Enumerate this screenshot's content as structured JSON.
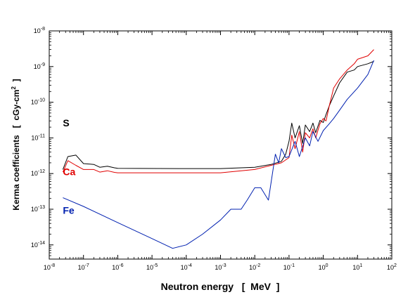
{
  "chart_data": {
    "type": "line",
    "xlabel": "Neutron energy   [  MeV  ]",
    "ylabel": "Kerma coefficients   [  cGy-cm",
    "ylabel_sup": "2",
    "ylabel_end": "  ]",
    "x_scale": "log",
    "y_scale": "log",
    "xlim": [
      1e-08,
      100
    ],
    "ylim": [
      4e-15,
      1e-08
    ],
    "grid": false,
    "x_ticks": [
      {
        "value": 1e-08,
        "base": "10",
        "exp": "-8"
      },
      {
        "value": 1e-07,
        "base": "10",
        "exp": "-7"
      },
      {
        "value": 1e-06,
        "base": "10",
        "exp": "-6"
      },
      {
        "value": 1e-05,
        "base": "10",
        "exp": "-5"
      },
      {
        "value": 0.0001,
        "base": "10",
        "exp": "-4"
      },
      {
        "value": 0.001,
        "base": "10",
        "exp": "-3"
      },
      {
        "value": 0.01,
        "base": "10",
        "exp": "-2"
      },
      {
        "value": 0.1,
        "base": "10",
        "exp": "-1"
      },
      {
        "value": 1,
        "base": "10",
        "exp": "0"
      },
      {
        "value": 10,
        "base": "10",
        "exp": "1"
      },
      {
        "value": 100,
        "base": "10",
        "exp": "2"
      }
    ],
    "y_ticks": [
      {
        "value": 1e-14,
        "base": "10",
        "exp": "-14"
      },
      {
        "value": 1e-13,
        "base": "10",
        "exp": "-13"
      },
      {
        "value": 1e-12,
        "base": "10",
        "exp": "-12"
      },
      {
        "value": 1e-11,
        "base": "10",
        "exp": "-11"
      },
      {
        "value": 1e-10,
        "base": "10",
        "exp": "-10"
      },
      {
        "value": 1e-09,
        "base": "10",
        "exp": "-9"
      },
      {
        "value": 1e-08,
        "base": "10",
        "exp": "-8"
      }
    ],
    "series": [
      {
        "name": "S",
        "color": "#000000",
        "label_at": [
          2.5e-08,
          2.1e-11
        ],
        "points": [
          [
            2.5e-08,
            1.3e-12
          ],
          [
            3.5e-08,
            3e-12
          ],
          [
            6e-08,
            3.3e-12
          ],
          [
            1e-07,
            1.9e-12
          ],
          [
            2e-07,
            1.8e-12
          ],
          [
            3e-07,
            1.5e-12
          ],
          [
            5e-07,
            1.6e-12
          ],
          [
            8e-07,
            1.45e-12
          ],
          [
            1e-06,
            1.4e-12
          ],
          [
            0.0001,
            1.38e-12
          ],
          [
            0.001,
            1.38e-12
          ],
          [
            0.01,
            1.5e-12
          ],
          [
            0.03,
            1.8e-12
          ],
          [
            0.06,
            2.2e-12
          ],
          [
            0.08,
            3.5e-12
          ],
          [
            0.1,
            8e-12
          ],
          [
            0.12,
            2.6e-11
          ],
          [
            0.15,
            1e-11
          ],
          [
            0.2,
            2.2e-11
          ],
          [
            0.25,
            7e-12
          ],
          [
            0.3,
            2.3e-11
          ],
          [
            0.4,
            1.5e-11
          ],
          [
            0.5,
            2.6e-11
          ],
          [
            0.6,
            1.4e-11
          ],
          [
            0.8,
            3.1e-11
          ],
          [
            1.0,
            2.7e-11
          ],
          [
            1.2,
            4.5e-11
          ],
          [
            1.5,
            8e-11
          ],
          [
            2,
            1.5e-10
          ],
          [
            3,
            3.5e-10
          ],
          [
            5,
            7e-10
          ],
          [
            8,
            8e-10
          ],
          [
            10,
            1e-09
          ],
          [
            20,
            1.2e-09
          ],
          [
            30,
            1.4e-09
          ]
        ]
      },
      {
        "name": "Ca",
        "color": "#e00000",
        "label_at": [
          2.5e-08,
          9e-13
        ],
        "points": [
          [
            2.5e-08,
            1.1e-12
          ],
          [
            3.5e-08,
            2.3e-12
          ],
          [
            6e-08,
            1.7e-12
          ],
          [
            1e-07,
            1.3e-12
          ],
          [
            2e-07,
            1.3e-12
          ],
          [
            3e-07,
            1.1e-12
          ],
          [
            5e-07,
            1.2e-12
          ],
          [
            8e-07,
            1.08e-12
          ],
          [
            1e-06,
            1.05e-12
          ],
          [
            0.0001,
            1.05e-12
          ],
          [
            0.001,
            1.05e-12
          ],
          [
            0.01,
            1.3e-12
          ],
          [
            0.03,
            1.7e-12
          ],
          [
            0.06,
            2e-12
          ],
          [
            0.1,
            2.8e-12
          ],
          [
            0.12,
            1.2e-11
          ],
          [
            0.15,
            5e-12
          ],
          [
            0.2,
            1.5e-11
          ],
          [
            0.25,
            4e-12
          ],
          [
            0.3,
            1.4e-11
          ],
          [
            0.4,
            1e-11
          ],
          [
            0.5,
            1.8e-11
          ],
          [
            0.6,
            1e-11
          ],
          [
            0.8,
            2.5e-11
          ],
          [
            1.0,
            3.5e-11
          ],
          [
            1.2,
            3e-11
          ],
          [
            1.5,
            8e-11
          ],
          [
            2,
            2.5e-10
          ],
          [
            3,
            4.5e-10
          ],
          [
            5,
            8e-10
          ],
          [
            8,
            1.2e-09
          ],
          [
            10,
            1.6e-09
          ],
          [
            20,
            2e-09
          ],
          [
            30,
            3e-09
          ]
        ]
      },
      {
        "name": "Fe",
        "color": "#0020b0",
        "label_at": [
          2.5e-08,
          7.5e-14
        ],
        "points": [
          [
            2.5e-08,
            2.1e-13
          ],
          [
            1e-07,
            1.2e-13
          ],
          [
            1e-06,
            4.2e-14
          ],
          [
            1e-05,
            1.5e-14
          ],
          [
            4e-05,
            8e-15
          ],
          [
            0.0001,
            1e-14
          ],
          [
            0.0003,
            2e-14
          ],
          [
            0.001,
            5e-14
          ],
          [
            0.002,
            1e-13
          ],
          [
            0.004,
            1e-13
          ],
          [
            0.006,
            1.8e-13
          ],
          [
            0.01,
            4e-13
          ],
          [
            0.015,
            4e-13
          ],
          [
            0.025,
            1.8e-13
          ],
          [
            0.04,
            3.5e-12
          ],
          [
            0.05,
            2e-12
          ],
          [
            0.06,
            5e-12
          ],
          [
            0.08,
            2.8e-12
          ],
          [
            0.1,
            3e-12
          ],
          [
            0.15,
            8e-12
          ],
          [
            0.2,
            3e-12
          ],
          [
            0.3,
            1e-11
          ],
          [
            0.4,
            6e-12
          ],
          [
            0.5,
            1.5e-11
          ],
          [
            0.7,
            8e-12
          ],
          [
            1.0,
            1.6e-11
          ],
          [
            1.5,
            2.5e-11
          ],
          [
            2,
            3.5e-11
          ],
          [
            3,
            6e-11
          ],
          [
            5,
            1.2e-10
          ],
          [
            10,
            2.5e-10
          ],
          [
            20,
            6e-10
          ],
          [
            30,
            1.5e-09
          ]
        ]
      }
    ]
  }
}
